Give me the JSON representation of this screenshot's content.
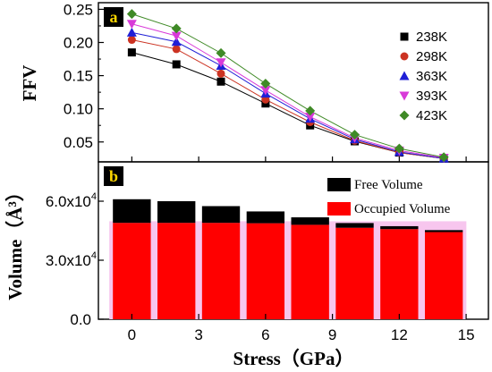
{
  "chart_data": [
    {
      "type": "line",
      "panel_label": "a",
      "ylabel": "FFV",
      "x": [
        0,
        3,
        6,
        9,
        12,
        15
      ],
      "ylim": [
        0.02,
        0.26
      ],
      "yticks": [
        "0.05",
        "0.10",
        "0.15",
        "0.20",
        "0.25"
      ],
      "ytick_values": [
        0.05,
        0.1,
        0.15,
        0.2,
        0.25
      ],
      "legend_position": "top-right",
      "series": [
        {
          "name": "238K",
          "marker": "square",
          "color": "#000000",
          "x": [
            0,
            2,
            4,
            6,
            8,
            10,
            12,
            14
          ],
          "values": [
            0.185,
            0.167,
            0.141,
            0.108,
            0.075,
            0.051,
            0.034,
            0.025
          ]
        },
        {
          "name": "298K",
          "marker": "circle",
          "color": "#cc3322",
          "x": [
            0,
            2,
            4,
            6,
            8,
            10,
            12,
            14
          ],
          "values": [
            0.204,
            0.19,
            0.153,
            0.114,
            0.08,
            0.052,
            0.034,
            0.025
          ]
        },
        {
          "name": "363K",
          "marker": "triangle-up",
          "color": "#1f1fd6",
          "x": [
            0,
            2,
            4,
            6,
            8,
            10,
            12,
            14
          ],
          "values": [
            0.215,
            0.201,
            0.165,
            0.123,
            0.085,
            0.054,
            0.035,
            0.025
          ]
        },
        {
          "name": "393K",
          "marker": "triangle-down",
          "color": "#d83ad8",
          "x": [
            0,
            2,
            4,
            6,
            8,
            10,
            12,
            14
          ],
          "values": [
            0.228,
            0.21,
            0.17,
            0.128,
            0.088,
            0.056,
            0.037,
            0.026
          ]
        },
        {
          "name": "423K",
          "marker": "diamond",
          "color": "#3f8a26",
          "x": [
            0,
            2,
            4,
            6,
            8,
            10,
            12,
            14
          ],
          "values": [
            0.243,
            0.221,
            0.184,
            0.138,
            0.097,
            0.061,
            0.04,
            0.027
          ]
        }
      ]
    },
    {
      "type": "bar",
      "stacked": true,
      "panel_label": "b",
      "ylabel": "Volume（Å³）",
      "xlabel": "Stress（GPa）",
      "xticks": [
        "0",
        "3",
        "6",
        "9",
        "12",
        "15"
      ],
      "xtick_values": [
        0,
        3,
        6,
        9,
        12,
        15
      ],
      "xlim": [
        -1.5,
        16
      ],
      "ylim": [
        0,
        80000
      ],
      "yticks": [
        "0.0",
        "3.0x10",
        "6.0x10"
      ],
      "ytick_exp": [
        "",
        "4",
        "4"
      ],
      "ytick_values": [
        0,
        30000,
        60000
      ],
      "legend_position": "top-right",
      "x": [
        0,
        2,
        4,
        6,
        8,
        10,
        12,
        14
      ],
      "series": [
        {
          "name": "Occupied Volume",
          "color": "#ff0000",
          "values": [
            49000,
            49000,
            49000,
            48800,
            48000,
            46500,
            45800,
            44300
          ]
        },
        {
          "name": "Free Volume",
          "color": "#000000",
          "values": [
            12000,
            11000,
            8500,
            6000,
            3800,
            2400,
            1500,
            1000
          ]
        }
      ]
    }
  ]
}
